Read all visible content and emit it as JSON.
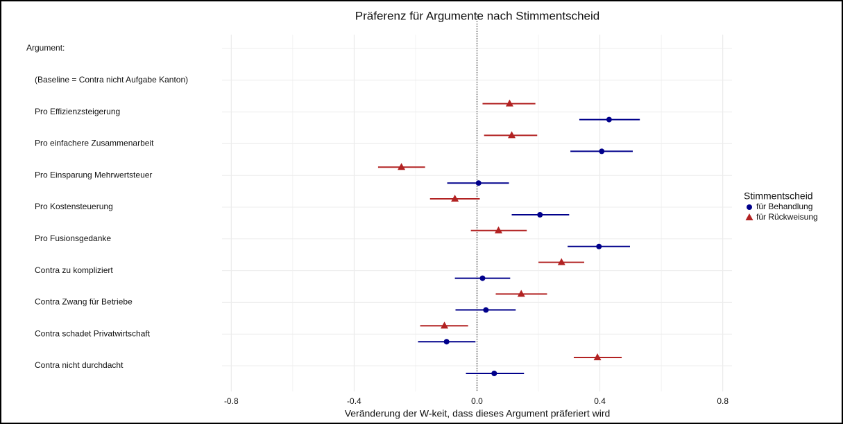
{
  "chart_data": {
    "type": "coefplot",
    "title": "Präferenz für Argumente nach Stimmentscheid",
    "x_label": "Veränderung der W-keit, dass dieses Argument präferiert wird",
    "categories": [
      "Argument:",
      "(Baseline = Contra nicht Aufgabe Kanton)",
      "Pro Effizienzsteigerung",
      "Pro einfachere Zusammenarbeit",
      "Pro Einsparung Mehrwertsteuer",
      "Pro Kostensteuerung",
      "Pro Fusionsgedanke",
      "Contra zu kompliziert",
      "Contra Zwang für Betriebe",
      "Contra schadet Privatwirtschaft",
      "Contra nicht durchdacht"
    ],
    "legend_title": "Stimmentscheid",
    "series": [
      {
        "name": "für Behandlung",
        "color": "#00008b",
        "marker": "circle",
        "values": [
          null,
          null,
          0.43,
          0.406,
          0.005,
          0.205,
          0.397,
          0.018,
          0.029,
          -0.099,
          0.056
        ],
        "lower": [
          null,
          null,
          0.333,
          0.304,
          -0.097,
          0.113,
          0.295,
          -0.072,
          -0.07,
          -0.192,
          -0.036
        ],
        "upper": [
          null,
          null,
          0.53,
          0.507,
          0.104,
          0.3,
          0.498,
          0.108,
          0.126,
          -0.005,
          0.153
        ]
      },
      {
        "name": "für Rückweisung",
        "color": "#b22222",
        "marker": "triangle",
        "values": [
          null,
          null,
          0.106,
          0.113,
          -0.246,
          -0.072,
          0.07,
          0.275,
          0.144,
          -0.106,
          0.392
        ],
        "lower": [
          null,
          null,
          0.018,
          0.023,
          -0.322,
          -0.153,
          -0.02,
          0.2,
          0.061,
          -0.185,
          0.315
        ],
        "upper": [
          null,
          null,
          0.19,
          0.196,
          -0.169,
          0.009,
          0.162,
          0.349,
          0.228,
          -0.029,
          0.471
        ]
      }
    ],
    "xlim": [
      -0.83,
      0.83
    ],
    "xticks": [
      -0.8,
      -0.4,
      {
        "value": 0,
        "label": "0.0"
      },
      0.4,
      0.8
    ],
    "minor_xticks": [
      -0.6,
      -0.2,
      0.2,
      0.6
    ],
    "reference_line": 0,
    "grid": true,
    "legend_position": "right"
  }
}
